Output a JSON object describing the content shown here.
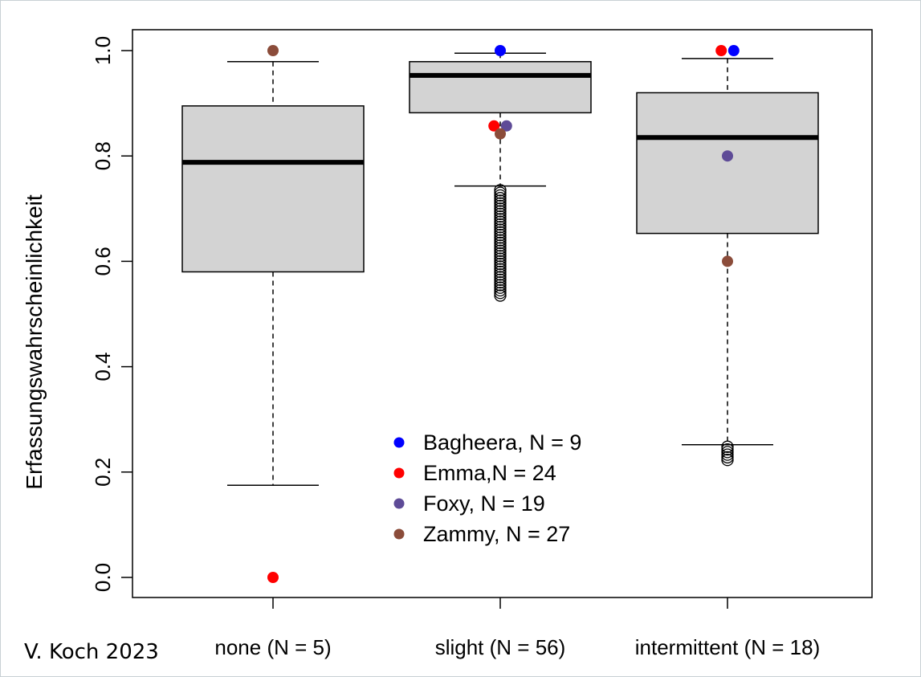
{
  "credit": "V. Koch 2023",
  "colors": {
    "background": "#ffffff",
    "frame_border": "#c8d0d4",
    "box_fill": "#d3d3d3",
    "axis": "#000000",
    "Bagheera": "#0000ff",
    "Emma": "#ff0000",
    "Foxy": "#5e4b97",
    "Zammy": "#8b4c3a"
  },
  "chart_data": {
    "type": "boxplot",
    "title": "",
    "xlabel": "",
    "ylabel": "Erfassungswahrscheinlichkeit",
    "ylim": [
      0.0,
      1.0
    ],
    "yticks": [
      "0.0",
      "0.2",
      "0.4",
      "0.6",
      "0.8",
      "1.0"
    ],
    "categories": [
      "none (N = 5)",
      "slight (N = 56)",
      "intermittent (N = 18)"
    ],
    "boxes": [
      {
        "category": "none (N = 5)",
        "whisker_low": 0.175,
        "q1": 0.58,
        "median": 0.788,
        "q3": 0.895,
        "whisker_high": 0.979,
        "outliers": []
      },
      {
        "category": "slight (N = 56)",
        "whisker_low": 0.743,
        "q1": 0.882,
        "median": 0.953,
        "q3": 0.979,
        "whisker_high": 0.995,
        "outliers": [
          0.735,
          0.73,
          0.725,
          0.72,
          0.715,
          0.71,
          0.705,
          0.7,
          0.695,
          0.69,
          0.685,
          0.68,
          0.675,
          0.67,
          0.665,
          0.66,
          0.655,
          0.65,
          0.645,
          0.64,
          0.635,
          0.63,
          0.625,
          0.62,
          0.615,
          0.61,
          0.605,
          0.6,
          0.595,
          0.59,
          0.585,
          0.58,
          0.575,
          0.57,
          0.565,
          0.56,
          0.555,
          0.55,
          0.545,
          0.54,
          0.535
        ]
      },
      {
        "category": "intermittent (N = 18)",
        "whisker_low": 0.252,
        "q1": 0.653,
        "median": 0.835,
        "q3": 0.92,
        "whisker_high": 0.985,
        "outliers": [
          0.248,
          0.243,
          0.238,
          0.233,
          0.228,
          0.223
        ]
      }
    ],
    "points": [
      {
        "series": "Zammy",
        "category": "none (N = 5)",
        "y": 1.0,
        "offset": 0
      },
      {
        "series": "Emma",
        "category": "none (N = 5)",
        "y": 0.0,
        "offset": 0
      },
      {
        "series": "Bagheera",
        "category": "slight (N = 56)",
        "y": 1.0,
        "offset": 0
      },
      {
        "series": "Emma",
        "category": "slight (N = 56)",
        "y": 0.857,
        "offset": -0.06
      },
      {
        "series": "Foxy",
        "category": "slight (N = 56)",
        "y": 0.857,
        "offset": 0.06
      },
      {
        "series": "Zammy",
        "category": "slight (N = 56)",
        "y": 0.842,
        "offset": 0
      },
      {
        "series": "Emma",
        "category": "intermittent (N = 18)",
        "y": 1.0,
        "offset": -0.06
      },
      {
        "series": "Bagheera",
        "category": "intermittent (N = 18)",
        "y": 1.0,
        "offset": 0.06
      },
      {
        "series": "Foxy",
        "category": "intermittent (N = 18)",
        "y": 0.8,
        "offset": 0
      },
      {
        "series": "Zammy",
        "category": "intermittent (N = 18)",
        "y": 0.6,
        "offset": 0
      }
    ],
    "legend": {
      "placement": "bottom-center",
      "entries": [
        {
          "series": "Bagheera",
          "label": "Bagheera, N = 9"
        },
        {
          "series": "Emma",
          "label": "Emma,N = 24"
        },
        {
          "series": "Foxy",
          "label": "Foxy, N = 19"
        },
        {
          "series": "Zammy",
          "label": "Zammy, N = 27"
        }
      ]
    },
    "grid": false
  }
}
